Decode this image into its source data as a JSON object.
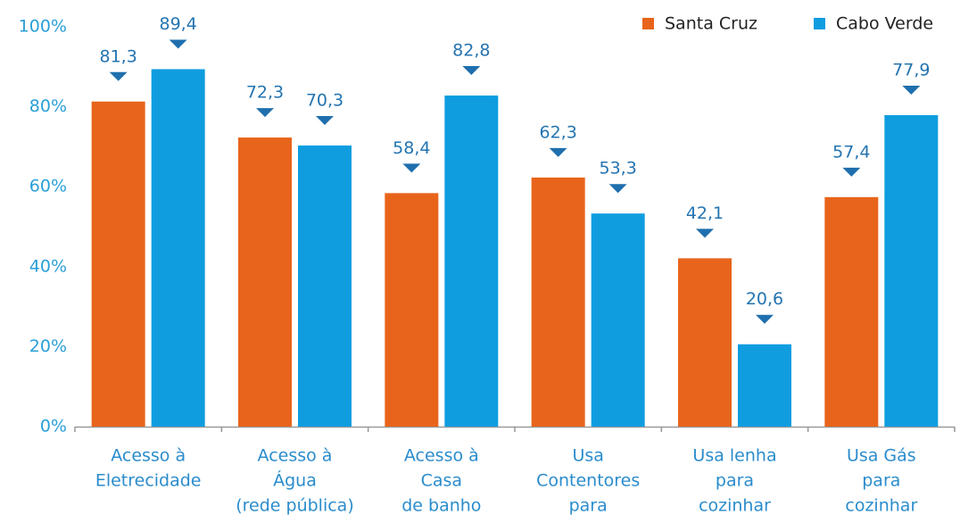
{
  "chart_data": {
    "type": "bar",
    "categories": [
      [
        "Acesso à",
        "Eletrecidade"
      ],
      [
        "Acesso à",
        "Água",
        "(rede pública)"
      ],
      [
        "Acesso à",
        "Casa",
        "de banho"
      ],
      [
        "Usa",
        "Contentores",
        "para"
      ],
      [
        "Usa lenha",
        "para",
        "cozinhar"
      ],
      [
        "Usa Gás",
        "para",
        "cozinhar"
      ]
    ],
    "series": [
      {
        "name": "Santa Cruz",
        "color": "#e8641b",
        "values": [
          81.3,
          72.3,
          58.4,
          62.3,
          42.1,
          57.4
        ],
        "value_labels": [
          "81,3",
          "72,3",
          "58,4",
          "62,3",
          "42,1",
          "57,4"
        ]
      },
      {
        "name": "Cabo Verde",
        "color": "#0f9de0",
        "values": [
          89.4,
          70.3,
          82.8,
          53.3,
          20.6,
          77.9
        ],
        "value_labels": [
          "89,4",
          "70,3",
          "82,8",
          "53,3",
          "20,6",
          "77,9"
        ]
      }
    ],
    "ylim": [
      0,
      100
    ],
    "yticks": [
      {
        "value": 0,
        "label": "0%"
      },
      {
        "value": 20,
        "label": "20%"
      },
      {
        "value": 40,
        "label": "40%"
      },
      {
        "value": 60,
        "label": "60%"
      },
      {
        "value": 80,
        "label": "80%"
      },
      {
        "value": 100,
        "label": "100%"
      }
    ],
    "legend": "top-right"
  }
}
